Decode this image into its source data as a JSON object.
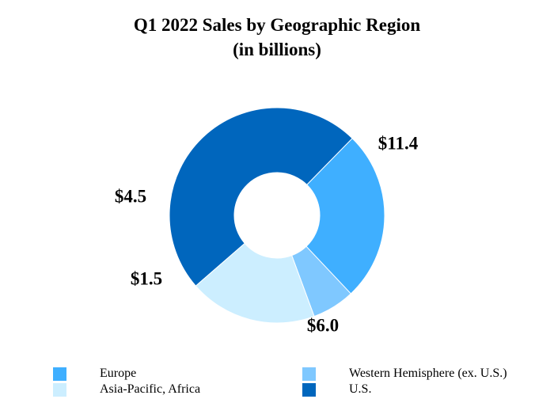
{
  "chart_data": {
    "type": "pie",
    "title": "Q1 2022 Sales by Geographic Region",
    "subtitle": "(in billions)",
    "slices": [
      {
        "name": "U.S.",
        "value": 11.4,
        "label": "$11.4",
        "color": "#0066bd"
      },
      {
        "name": "Europe",
        "value": 6.0,
        "label": "$6.0",
        "color": "#3fafff"
      },
      {
        "name": "Western Hemisphere (ex. U.S.)",
        "value": 1.5,
        "label": "$1.5",
        "color": "#7fc8ff"
      },
      {
        "name": "Asia-Pacific, Africa",
        "value": 4.5,
        "label": "$4.5",
        "color": "#cceeff"
      }
    ],
    "legend": [
      "Europe",
      "Western Hemisphere (ex. U.S.)",
      "Asia-Pacific, Africa",
      "U.S."
    ],
    "legend_placement": "bottom"
  }
}
